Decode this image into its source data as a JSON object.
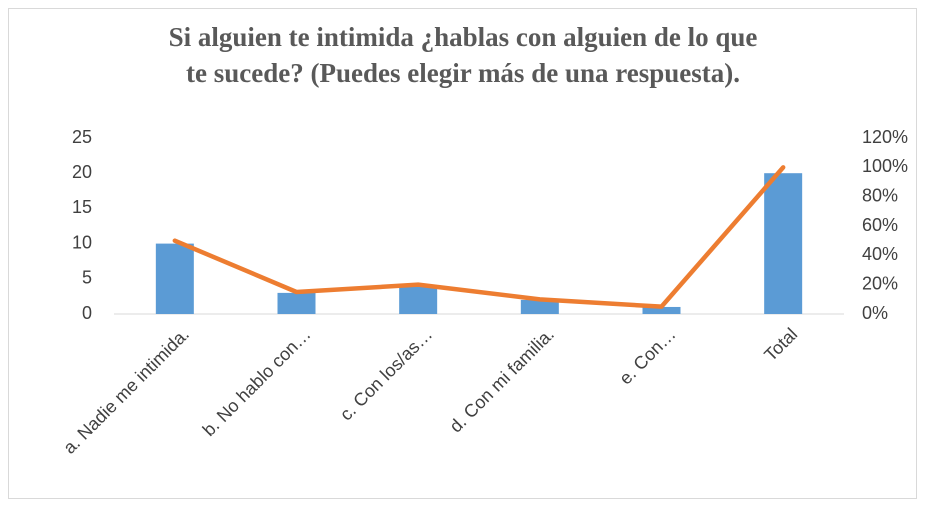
{
  "chart_data": {
    "type": "bar_line",
    "title": [
      "Si alguien te intimida ¿hablas con alguien de lo que",
      "te sucede?  (Puedes elegir más de una respuesta)."
    ],
    "categories": [
      "a. Nadie me intimida.",
      "b. No hablo con…",
      "c. Con los/as…",
      "d. Con mi familia.",
      "e. Con…",
      "Total"
    ],
    "series": [
      {
        "type": "bar",
        "color": "#5b9bd5",
        "values": [
          10,
          3,
          4,
          2,
          1,
          20
        ]
      },
      {
        "type": "line",
        "color": "#ed7d31",
        "axis": "y2",
        "values": [
          50,
          15,
          20,
          10,
          5,
          100
        ]
      }
    ],
    "ylim": [
      0,
      25
    ],
    "yticks": [
      0,
      5,
      10,
      15,
      20,
      25
    ],
    "y2lim": [
      0,
      120
    ],
    "y2ticks": [
      {
        "value": 0,
        "label": "0%"
      },
      {
        "value": 20,
        "label": "20%"
      },
      {
        "value": 40,
        "label": "40%"
      },
      {
        "value": 60,
        "label": "60%"
      },
      {
        "value": 80,
        "label": "80%"
      },
      {
        "value": 100,
        "label": "100%"
      },
      {
        "value": 120,
        "label": "120%"
      }
    ],
    "grid": false
  }
}
